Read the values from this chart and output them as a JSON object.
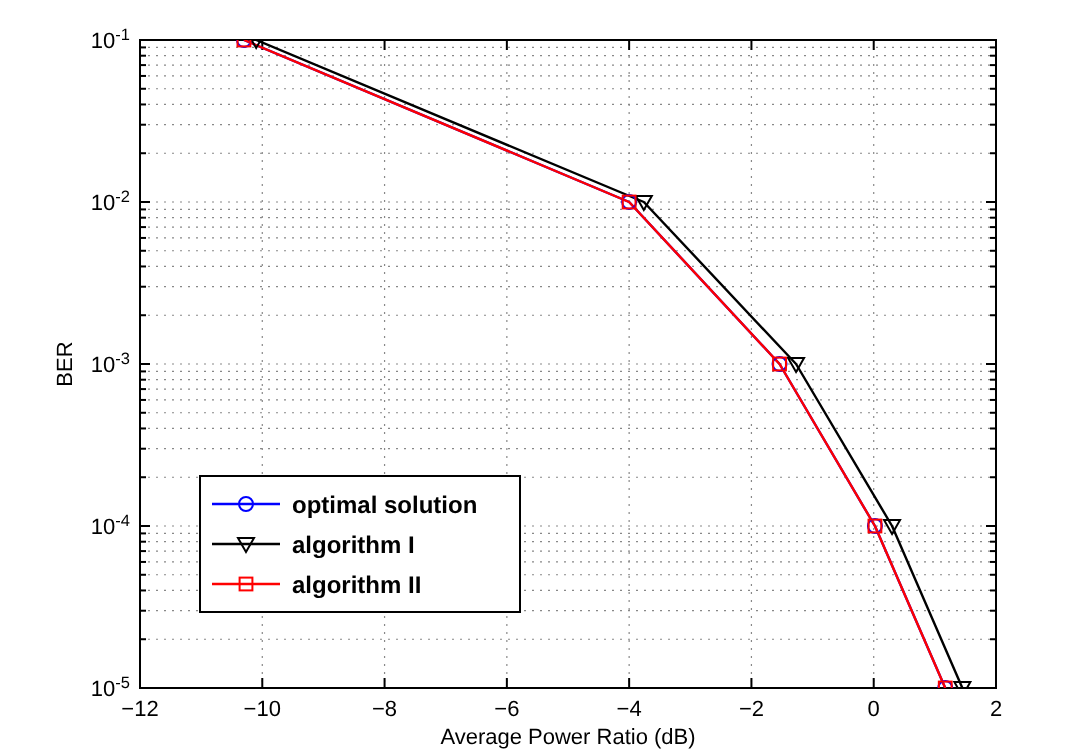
{
  "chart_data": {
    "type": "line",
    "xlabel": "Average Power Ratio (dB)",
    "ylabel": "BER",
    "log": "y",
    "grid": true,
    "line_style": "solid",
    "legend": "bottom left",
    "xlim": [
      -12,
      2
    ],
    "xticks": [
      -12,
      -10,
      -8,
      -6,
      -4,
      -2,
      0,
      2
    ],
    "ylim": [
      1e-05,
      0.1
    ],
    "yticks": [
      {
        "value": 1e-05,
        "label": "10$^{-5}$"
      },
      {
        "value": 0.0001,
        "label": "10$^{-4}$"
      },
      {
        "value": 0.001,
        "label": "10$^{-3}$"
      },
      {
        "value": 0.01,
        "label": "10$^{-2}$"
      },
      {
        "value": 0.1,
        "label": "10$^{-1}$"
      }
    ],
    "series": [
      {
        "name": "optimal solution",
        "color": "#0000ff",
        "marker": "circle",
        "x": [
          -10.3,
          -4,
          -1.54,
          0.02,
          1.17
        ],
        "values": [
          0.1,
          0.01,
          0.001,
          0.0001,
          1e-05
        ]
      },
      {
        "name": "algorithm I",
        "color": "#000000",
        "marker": "triangle",
        "x": [
          -10.1,
          -3.76,
          -1.27,
          0.3,
          1.45
        ],
        "values": [
          0.1,
          0.01,
          0.001,
          0.0001,
          1e-05
        ]
      },
      {
        "name": "algorithm II",
        "color": "#ff0000",
        "marker": "square",
        "x": [
          -10.3,
          -4,
          -1.54,
          0.02,
          1.17
        ],
        "values": [
          0.1,
          0.01,
          0.001,
          0.0001,
          1e-05
        ]
      }
    ]
  }
}
